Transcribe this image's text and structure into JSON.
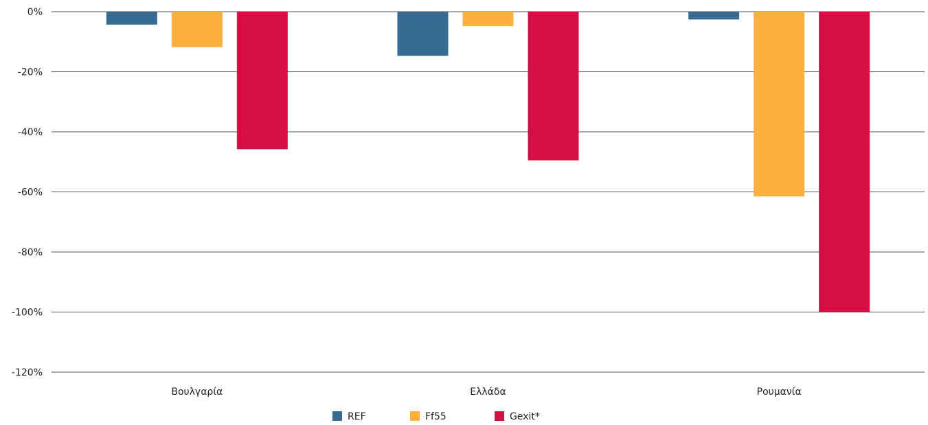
{
  "chart_data": {
    "type": "bar",
    "categories": [
      "Βουλγαρία",
      "Ελλάδα",
      "Ρουμανία"
    ],
    "series": [
      {
        "name": "REF",
        "color": "#376b91",
        "values": [
          -4.3,
          -14.7,
          -2.6
        ]
      },
      {
        "name": "Ff55",
        "color": "#fbb040",
        "values": [
          -11.8,
          -4.8,
          -61.5
        ]
      },
      {
        "name": "Gexit*",
        "color": "#d40f44",
        "values": [
          -45.8,
          -49.5,
          -100
        ]
      }
    ],
    "yticks": [
      "0%",
      "-20%",
      "-40%",
      "-60%",
      "-80%",
      "-100%",
      "-120%"
    ],
    "ylim": [
      -120,
      0
    ],
    "ystep": 20,
    "grid": true,
    "legend": "bottom"
  }
}
